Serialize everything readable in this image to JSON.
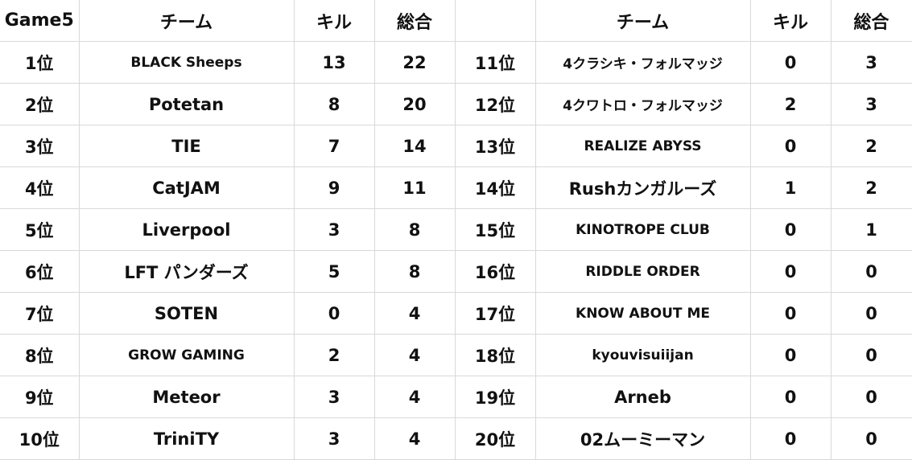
{
  "header": {
    "game": "Game5",
    "team": "チーム",
    "kills": "キル",
    "total": "総合",
    "rank_blank": "",
    "team2": "チーム",
    "kills2": "キル",
    "total2": "総合"
  },
  "rows": [
    {
      "rank": "1位",
      "team": "BLACK Sheeps",
      "kills": "13",
      "total": "22"
    },
    {
      "rank": "2位",
      "team": "Potetan",
      "kills": "8",
      "total": "20"
    },
    {
      "rank": "3位",
      "team": "TIE",
      "kills": "7",
      "total": "14"
    },
    {
      "rank": "4位",
      "team": "CatJAM",
      "kills": "9",
      "total": "11"
    },
    {
      "rank": "5位",
      "team": "Liverpool",
      "kills": "3",
      "total": "8"
    },
    {
      "rank": "6位",
      "team": "LFT パンダーズ",
      "kills": "5",
      "total": "8"
    },
    {
      "rank": "7位",
      "team": "SOTEN",
      "kills": "0",
      "total": "4"
    },
    {
      "rank": "8位",
      "team": "GROW GAMING",
      "kills": "2",
      "total": "4"
    },
    {
      "rank": "9位",
      "team": "Meteor",
      "kills": "3",
      "total": "4"
    },
    {
      "rank": "10位",
      "team": "TriniTY",
      "kills": "3",
      "total": "4"
    },
    {
      "rank": "11位",
      "team": "4クラシキ・フォルマッジ",
      "kills": "0",
      "total": "3"
    },
    {
      "rank": "12位",
      "team": "4クワトロ・フォルマッジ",
      "kills": "2",
      "total": "3"
    },
    {
      "rank": "13位",
      "team": "REALIZE ABYSS",
      "kills": "0",
      "total": "2"
    },
    {
      "rank": "14位",
      "team": "Rushカンガルーズ",
      "kills": "1",
      "total": "2"
    },
    {
      "rank": "15位",
      "team": "KINOTROPE CLUB",
      "kills": "0",
      "total": "1"
    },
    {
      "rank": "16位",
      "team": "RIDDLE ORDER",
      "kills": "0",
      "total": "0"
    },
    {
      "rank": "17位",
      "team": "KNOW ABOUT ME",
      "kills": "0",
      "total": "0"
    },
    {
      "rank": "18位",
      "team": "kyouvisuiijan",
      "kills": "0",
      "total": "0"
    },
    {
      "rank": "19位",
      "team": "Arneb",
      "kills": "0",
      "total": "0"
    },
    {
      "rank": "20位",
      "team": "02ムーミーマン",
      "kills": "0",
      "total": "0"
    }
  ]
}
